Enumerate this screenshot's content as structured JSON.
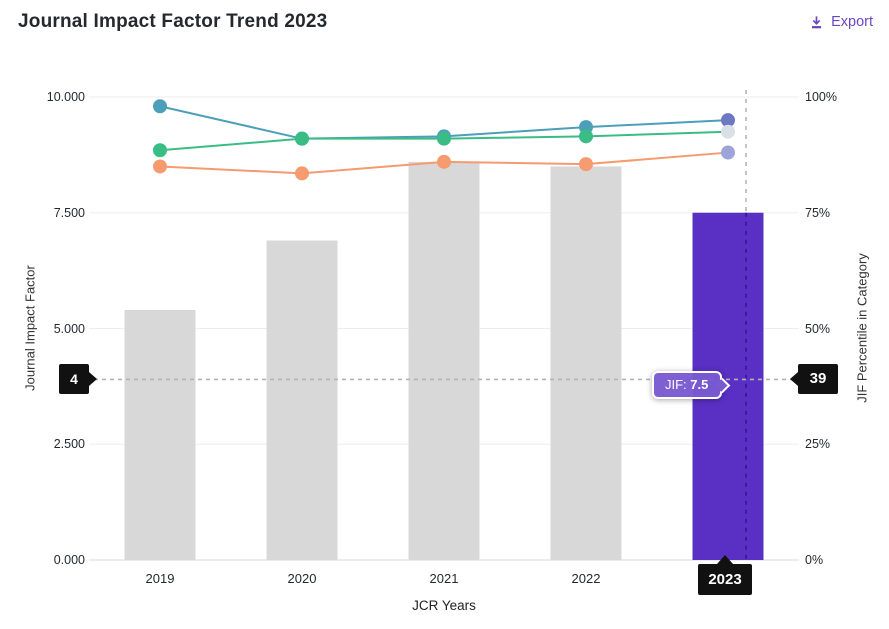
{
  "header": {
    "title": "Journal Impact Factor Trend 2023",
    "export_label": "Export"
  },
  "chart_data": {
    "type": "combo-bar-line",
    "title": "Journal Impact Factor Trend 2023",
    "xlabel": "JCR Years",
    "ylabel_left": "Journal Impact Factor",
    "ylabel_right": "JIF Percentile in Category",
    "categories": [
      "2019",
      "2020",
      "2021",
      "2022",
      "2023"
    ],
    "left_axis": {
      "range": [
        0,
        10
      ],
      "ticks": [
        "10.000",
        "7.500",
        "5.000",
        "2.500",
        "0.000"
      ]
    },
    "right_axis": {
      "range": [
        0,
        100
      ],
      "ticks": [
        "100%",
        "75%",
        "50%",
        "25%",
        "0%"
      ]
    },
    "bars": {
      "name": "Journal Impact Factor (JIF)",
      "axis": "left",
      "values": [
        5.4,
        6.9,
        8.6,
        8.5,
        7.5
      ],
      "color_default": "#d8d8d8",
      "color_highlight": "#5a2fc4",
      "highlight_index": 4
    },
    "lines": [
      {
        "name": "percentile-category-1",
        "axis": "right",
        "color": "#4b9fb8",
        "values": [
          98,
          91,
          91.5,
          93.5,
          95
        ],
        "final_dot_color": "#6d77c3"
      },
      {
        "name": "percentile-category-2",
        "axis": "right",
        "color": "#3abd85",
        "values": [
          88.5,
          91,
          91,
          91.5,
          92.5
        ],
        "final_dot_color": "#d9e0e7"
      },
      {
        "name": "percentile-category-3",
        "axis": "right",
        "color": "#f59b6f",
        "values": [
          85,
          83.5,
          86,
          85.5,
          88
        ],
        "final_dot_color": "#9da4da"
      }
    ],
    "threshold": {
      "left_value_label": "4",
      "right_value_label": "39",
      "right_value": 39
    },
    "highlight": {
      "year": "2023",
      "tooltip_label": "JIF:",
      "tooltip_value": "7.5"
    },
    "grid": true,
    "legend": false
  },
  "colors": {
    "accent_purple": "#6b46c1",
    "marker_bg": "#111111",
    "tooltip_bg": "#7a5ad0",
    "gridline": "#ededed",
    "axis_line": "#d9d9d9",
    "dash_gray": "#b3b3b3",
    "dash_purple": "#3a1d93"
  }
}
